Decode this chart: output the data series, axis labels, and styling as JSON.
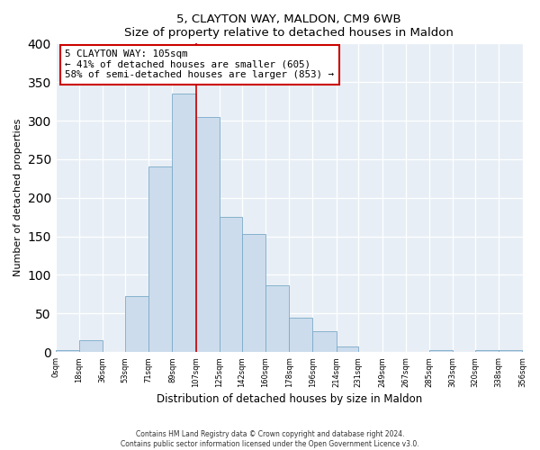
{
  "title": "5, CLAYTON WAY, MALDON, CM9 6WB",
  "subtitle": "Size of property relative to detached houses in Maldon",
  "xlabel": "Distribution of detached houses by size in Maldon",
  "ylabel": "Number of detached properties",
  "bin_edges": [
    0,
    18,
    36,
    53,
    71,
    89,
    107,
    125,
    142,
    160,
    178,
    196,
    214,
    231,
    249,
    267,
    285,
    303,
    320,
    338,
    356
  ],
  "bar_values": [
    2,
    15,
    0,
    72,
    240,
    335,
    305,
    175,
    153,
    87,
    45,
    27,
    7,
    0,
    0,
    0,
    2,
    0,
    2,
    2
  ],
  "bar_color": "#ccdcec",
  "bar_edge_color": "#7aaac8",
  "tick_labels": [
    "0sqm",
    "18sqm",
    "36sqm",
    "53sqm",
    "71sqm",
    "89sqm",
    "107sqm",
    "125sqm",
    "142sqm",
    "160sqm",
    "178sqm",
    "196sqm",
    "214sqm",
    "231sqm",
    "249sqm",
    "267sqm",
    "285sqm",
    "303sqm",
    "320sqm",
    "338sqm",
    "356sqm"
  ],
  "property_line_x": 107,
  "property_line_color": "#cc0000",
  "annotation_line1": "5 CLAYTON WAY: 105sqm",
  "annotation_line2": "← 41% of detached houses are smaller (605)",
  "annotation_line3": "58% of semi-detached houses are larger (853) →",
  "annotation_box_color": "#ffffff",
  "annotation_box_edge": "#cc0000",
  "footer_line1": "Contains HM Land Registry data © Crown copyright and database right 2024.",
  "footer_line2": "Contains public sector information licensed under the Open Government Licence v3.0.",
  "ylim": [
    0,
    400
  ],
  "yticks": [
    0,
    50,
    100,
    150,
    200,
    250,
    300,
    350,
    400
  ],
  "background_color": "#e8eef5"
}
